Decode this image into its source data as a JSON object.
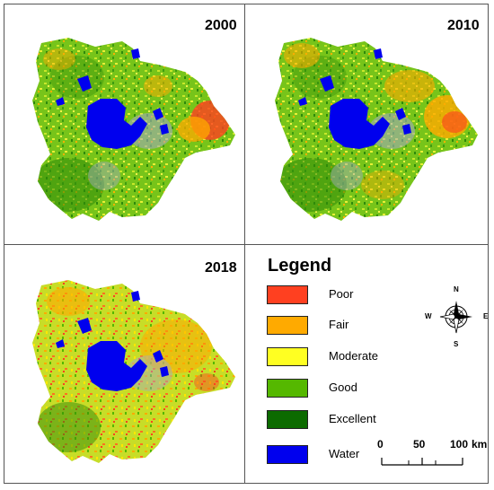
{
  "maps": [
    {
      "year": "2000"
    },
    {
      "year": "2010"
    },
    {
      "year": "2018"
    }
  ],
  "legend": {
    "title": "Legend",
    "items": [
      {
        "label": "Poor",
        "color": "#ff4020"
      },
      {
        "label": "Fair",
        "color": "#ffaa00"
      },
      {
        "label": "Moderate",
        "color": "#ffff22"
      },
      {
        "label": "Good",
        "color": "#55b800"
      },
      {
        "label": "Excellent",
        "color": "#0c6b00"
      },
      {
        "label": "Water",
        "color": "#0000ee"
      }
    ]
  },
  "compass": {
    "n": "N",
    "s": "S",
    "e": "E",
    "w": "W"
  },
  "scale": {
    "ticks": [
      "0",
      "50",
      "100"
    ],
    "unit": "km"
  }
}
